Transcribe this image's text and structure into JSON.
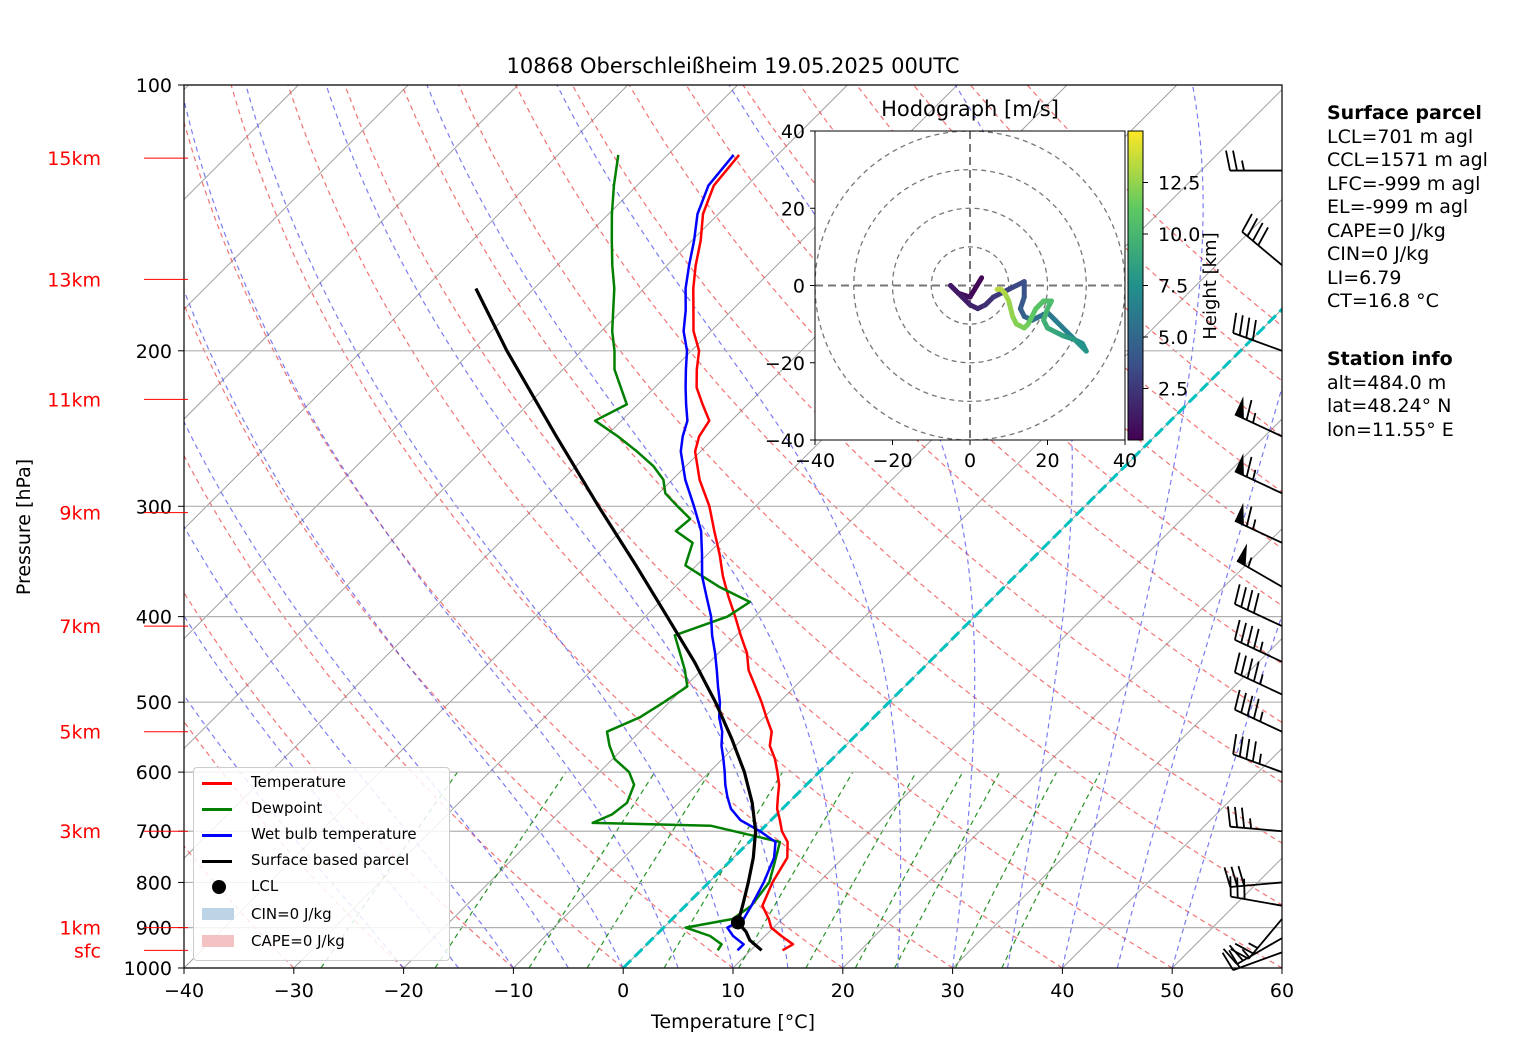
{
  "title": "10868 Oberschleißheim 19.05.2025 00UTC",
  "colors": {
    "temperature": "#ff0000",
    "dewpoint": "#008000",
    "wetbulb": "#0000ff",
    "parcel": "#000000",
    "isotherm": "#a0a0a0",
    "dry_adiabat": "#ee4444",
    "moist_adiabat": "#4444ee",
    "mixing_ratio": "#008000",
    "freezing_level": "#00c0c0",
    "height_label": "#ff0000",
    "cin_fill": "#bcd4e6",
    "cape_fill": "#f4c2c2"
  },
  "chart_data": {
    "type": "line",
    "diagram": "skew-T log-p",
    "title": "10868 Oberschleißheim 19.05.2025 00UTC",
    "xlabel": "Temperature [°C]",
    "ylabel": "Pressure [hPa]",
    "xlim": [
      -40,
      60
    ],
    "ylim": [
      1000,
      100
    ],
    "yscale": "log",
    "x_ticks": [
      "−40",
      "−30",
      "−20",
      "−10",
      "0",
      "10",
      "20",
      "30",
      "40",
      "50",
      "60"
    ],
    "y_ticks": [
      {
        "p": 1000,
        "label": "1000"
      },
      {
        "p": 900,
        "label": "900"
      },
      {
        "p": 800,
        "label": "800"
      },
      {
        "p": 700,
        "label": "700"
      },
      {
        "p": 600,
        "label": "600"
      },
      {
        "p": 500,
        "label": "500"
      },
      {
        "p": 400,
        "label": "400"
      },
      {
        "p": 300,
        "label": "300"
      },
      {
        "p": 200,
        "label": "200"
      },
      {
        "p": 100,
        "label": "100"
      }
    ],
    "height_ticks": [
      {
        "label": "sfc",
        "p": 955
      },
      {
        "label": "1km",
        "p": 900
      },
      {
        "label": "3km",
        "p": 700
      },
      {
        "label": "5km",
        "p": 540
      },
      {
        "label": "7km",
        "p": 410
      },
      {
        "label": "9km",
        "p": 305
      },
      {
        "label": "11km",
        "p": 227
      },
      {
        "label": "13km",
        "p": 166
      },
      {
        "label": "15km",
        "p": 121
      }
    ],
    "grid": true,
    "series": [
      {
        "name": "Temperature",
        "points": [
          [
            955,
            12.9
          ],
          [
            940,
            13.3
          ],
          [
            920,
            11.5
          ],
          [
            900,
            9.8
          ],
          [
            880,
            8.8
          ],
          [
            850,
            7.0
          ],
          [
            800,
            5.8
          ],
          [
            750,
            4.9
          ],
          [
            720,
            3.5
          ],
          [
            700,
            2.0
          ],
          [
            680,
            0.8
          ],
          [
            660,
            -0.5
          ],
          [
            640,
            -1.5
          ],
          [
            620,
            -2.5
          ],
          [
            600,
            -3.8
          ],
          [
            580,
            -5.2
          ],
          [
            560,
            -6.9
          ],
          [
            540,
            -8.0
          ],
          [
            520,
            -9.8
          ],
          [
            500,
            -11.6
          ],
          [
            480,
            -13.6
          ],
          [
            460,
            -15.7
          ],
          [
            440,
            -17.4
          ],
          [
            420,
            -19.6
          ],
          [
            400,
            -21.8
          ],
          [
            380,
            -24.2
          ],
          [
            360,
            -26.6
          ],
          [
            340,
            -28.9
          ],
          [
            320,
            -31.5
          ],
          [
            300,
            -34.2
          ],
          [
            280,
            -37.5
          ],
          [
            260,
            -40.5
          ],
          [
            250,
            -41.5
          ],
          [
            240,
            -42.0
          ],
          [
            230,
            -44.1
          ],
          [
            220,
            -46.2
          ],
          [
            210,
            -47.8
          ],
          [
            200,
            -49.3
          ],
          [
            190,
            -51.6
          ],
          [
            180,
            -53.5
          ],
          [
            170,
            -55.5
          ],
          [
            160,
            -57.4
          ],
          [
            150,
            -59.2
          ],
          [
            140,
            -61.4
          ],
          [
            130,
            -63.0
          ],
          [
            120,
            -63.5
          ]
        ]
      },
      {
        "name": "Dewpoint",
        "points": [
          [
            955,
            7.0
          ],
          [
            940,
            6.8
          ],
          [
            920,
            5.0
          ],
          [
            900,
            2.0
          ],
          [
            880,
            5.5
          ],
          [
            850,
            6.0
          ],
          [
            800,
            5.5
          ],
          [
            760,
            4.2
          ],
          [
            720,
            2.8
          ],
          [
            690,
            -5.0
          ],
          [
            685,
            -16.0
          ],
          [
            670,
            -15.0
          ],
          [
            650,
            -14.7
          ],
          [
            620,
            -15.7
          ],
          [
            600,
            -17.3
          ],
          [
            580,
            -19.8
          ],
          [
            560,
            -21.5
          ],
          [
            540,
            -23.0
          ],
          [
            520,
            -21.3
          ],
          [
            500,
            -20.5
          ],
          [
            480,
            -19.8
          ],
          [
            460,
            -21.5
          ],
          [
            440,
            -23.5
          ],
          [
            420,
            -25.6
          ],
          [
            400,
            -22.5
          ],
          [
            385,
            -21.8
          ],
          [
            370,
            -26.0
          ],
          [
            350,
            -31.0
          ],
          [
            330,
            -32.4
          ],
          [
            320,
            -35.0
          ],
          [
            310,
            -34.8
          ],
          [
            300,
            -37.1
          ],
          [
            290,
            -39.4
          ],
          [
            280,
            -40.8
          ],
          [
            270,
            -43.0
          ],
          [
            260,
            -45.8
          ],
          [
            250,
            -48.9
          ],
          [
            240,
            -52.4
          ],
          [
            230,
            -51.0
          ],
          [
            220,
            -53.1
          ],
          [
            210,
            -55.3
          ],
          [
            200,
            -57.0
          ],
          [
            190,
            -59.0
          ],
          [
            180,
            -60.8
          ],
          [
            170,
            -62.7
          ],
          [
            160,
            -65.0
          ],
          [
            150,
            -67.3
          ],
          [
            140,
            -69.7
          ],
          [
            130,
            -72.1
          ],
          [
            120,
            -74.5
          ]
        ]
      },
      {
        "name": "Wet bulb temperature",
        "points": [
          [
            955,
            8.8
          ],
          [
            940,
            8.8
          ],
          [
            920,
            7.1
          ],
          [
            900,
            5.8
          ],
          [
            880,
            6.5
          ],
          [
            850,
            6.0
          ],
          [
            800,
            5.0
          ],
          [
            750,
            3.7
          ],
          [
            720,
            2.4
          ],
          [
            700,
            0.0
          ],
          [
            680,
            -2.8
          ],
          [
            660,
            -4.7
          ],
          [
            640,
            -6.1
          ],
          [
            620,
            -7.4
          ],
          [
            600,
            -8.6
          ],
          [
            580,
            -9.9
          ],
          [
            560,
            -11.3
          ],
          [
            540,
            -12.5
          ],
          [
            520,
            -14.1
          ],
          [
            500,
            -15.4
          ],
          [
            480,
            -17.0
          ],
          [
            460,
            -18.6
          ],
          [
            440,
            -20.3
          ],
          [
            420,
            -22.2
          ],
          [
            400,
            -24.0
          ],
          [
            380,
            -26.2
          ],
          [
            360,
            -28.5
          ],
          [
            340,
            -30.5
          ],
          [
            320,
            -32.7
          ],
          [
            300,
            -35.6
          ],
          [
            280,
            -38.8
          ],
          [
            260,
            -41.8
          ],
          [
            250,
            -43.0
          ],
          [
            240,
            -44.0
          ],
          [
            230,
            -45.6
          ],
          [
            220,
            -47.2
          ],
          [
            210,
            -48.8
          ],
          [
            200,
            -50.4
          ],
          [
            190,
            -52.5
          ],
          [
            180,
            -54.2
          ],
          [
            170,
            -56.2
          ],
          [
            160,
            -58.0
          ],
          [
            150,
            -59.8
          ],
          [
            140,
            -61.9
          ],
          [
            130,
            -63.5
          ],
          [
            120,
            -64.0
          ]
        ]
      },
      {
        "name": "Surface based parcel",
        "points": [
          [
            955,
            11.0
          ],
          [
            930,
            9.0
          ],
          [
            910,
            7.9
          ],
          [
            888,
            6.3
          ],
          [
            850,
            5.2
          ],
          [
            800,
            3.6
          ],
          [
            750,
            1.8
          ],
          [
            700,
            -0.4
          ],
          [
            650,
            -3.3
          ],
          [
            600,
            -6.8
          ],
          [
            550,
            -11.0
          ],
          [
            500,
            -15.8
          ],
          [
            450,
            -21.4
          ],
          [
            400,
            -28.0
          ],
          [
            350,
            -35.5
          ],
          [
            300,
            -44.3
          ],
          [
            250,
            -54.5
          ],
          [
            200,
            -66.8
          ],
          [
            170,
            -75.3
          ]
        ]
      }
    ],
    "lcl_point": {
      "p": 888,
      "t": 6.3
    },
    "freezing_level_line": [
      [
        1000,
        0
      ],
      [
        150,
        0
      ]
    ],
    "legend": {
      "placement": "lower-left",
      "entries": [
        "Temperature",
        "Dewpoint",
        "Wet bulb temperature",
        "Surface based parcel",
        "LCL",
        "CIN=0 J/kg",
        "CAPE=0 J/kg"
      ]
    },
    "wind_barbs": [
      {
        "p": 960,
        "dir": 250,
        "speed_kt": 20
      },
      {
        "p": 925,
        "dir": 240,
        "speed_kt": 25
      },
      {
        "p": 880,
        "dir": 220,
        "speed_kt": 25
      },
      {
        "p": 850,
        "dir": 280,
        "speed_kt": 30
      },
      {
        "p": 800,
        "dir": 265,
        "speed_kt": 30
      },
      {
        "p": 700,
        "dir": 275,
        "speed_kt": 35
      },
      {
        "p": 600,
        "dir": 290,
        "speed_kt": 45
      },
      {
        "p": 540,
        "dir": 295,
        "speed_kt": 45
      },
      {
        "p": 490,
        "dir": 295,
        "speed_kt": 45
      },
      {
        "p": 450,
        "dir": 295,
        "speed_kt": 45
      },
      {
        "p": 410,
        "dir": 295,
        "speed_kt": 40
      },
      {
        "p": 370,
        "dir": 300,
        "speed_kt": 55
      },
      {
        "p": 330,
        "dir": 295,
        "speed_kt": 65
      },
      {
        "p": 290,
        "dir": 295,
        "speed_kt": 65
      },
      {
        "p": 250,
        "dir": 295,
        "speed_kt": 65
      },
      {
        "p": 200,
        "dir": 290,
        "speed_kt": 40
      },
      {
        "p": 160,
        "dir": 310,
        "speed_kt": 40
      },
      {
        "p": 125,
        "dir": 270,
        "speed_kt": 25
      }
    ],
    "hodograph": {
      "title": "Hodograph [m/s]",
      "xlim": [
        -40,
        40
      ],
      "ylim": [
        -40,
        40
      ],
      "ticks": [
        "−40",
        "−20",
        "0",
        "20",
        "40"
      ],
      "ring_radii": [
        10,
        20,
        30,
        40
      ],
      "colorbar_label": "Height [km]",
      "colorbar_ticks": [
        "2.5",
        "5.0",
        "7.5",
        "10.0",
        "12.5"
      ],
      "colorbar_range": [
        0,
        15
      ],
      "points": [
        [
          3,
          2,
          0.3
        ],
        [
          0,
          -3,
          0.6
        ],
        [
          -3,
          -2,
          0.9
        ],
        [
          -5,
          0,
          1.1
        ],
        [
          -2,
          -3,
          1.3
        ],
        [
          0,
          -5,
          1.6
        ],
        [
          2,
          -6,
          1.9
        ],
        [
          4,
          -5,
          2.2
        ],
        [
          6,
          -3,
          2.5
        ],
        [
          8,
          -2,
          2.8
        ],
        [
          10,
          -1,
          3.1
        ],
        [
          12,
          0,
          3.4
        ],
        [
          14,
          1,
          3.7
        ],
        [
          14,
          -3,
          4.1
        ],
        [
          13,
          -6,
          4.5
        ],
        [
          14,
          -8,
          4.9
        ],
        [
          16,
          -9,
          5.3
        ],
        [
          18,
          -8,
          5.6
        ],
        [
          20,
          -7,
          6.0
        ],
        [
          22,
          -9,
          6.3
        ],
        [
          25,
          -12,
          6.7
        ],
        [
          27,
          -14,
          7.0
        ],
        [
          29,
          -15,
          7.4
        ],
        [
          30,
          -17,
          7.8
        ],
        [
          27,
          -14,
          8.2
        ],
        [
          24,
          -13,
          8.6
        ],
        [
          22,
          -12,
          9.0
        ],
        [
          20,
          -11,
          9.4
        ],
        [
          19,
          -9,
          9.8
        ],
        [
          20,
          -6,
          10.1
        ],
        [
          21,
          -4,
          10.4
        ],
        [
          19,
          -4,
          10.7
        ],
        [
          17,
          -6,
          11.0
        ],
        [
          16,
          -8,
          11.3
        ],
        [
          15,
          -10,
          11.6
        ],
        [
          14,
          -11,
          11.9
        ],
        [
          12,
          -10,
          12.2
        ],
        [
          11,
          -8,
          12.5
        ],
        [
          10,
          -4,
          12.8
        ],
        [
          9,
          -2,
          13.1
        ],
        [
          8,
          -1,
          13.4
        ],
        [
          7,
          -1,
          13.7
        ]
      ]
    }
  },
  "surface_parcel": {
    "heading": "Surface parcel",
    "lines": [
      "LCL=701 m agl",
      "CCL=1571 m agl",
      "LFC=-999 m agl",
      "EL=-999 m agl",
      "CAPE=0 J/kg",
      "CIN=0 J/kg",
      "LI=6.79",
      "CT=16.8 °C"
    ]
  },
  "station_info": {
    "heading": "Station info",
    "lines": [
      "alt=484.0 m",
      "lat=48.24° N",
      "lon=11.55° E"
    ]
  }
}
